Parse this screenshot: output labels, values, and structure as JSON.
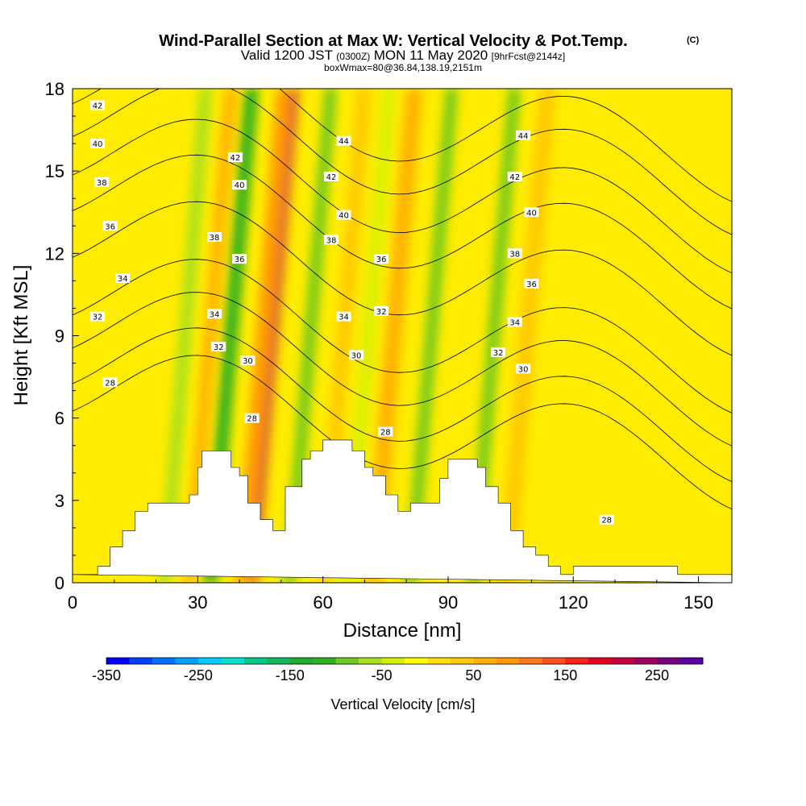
{
  "chart_data": {
    "type": "heatmap",
    "title": "Wind-Parallel Section at Max W: Vertical Velocity & Pot.Temp.",
    "title_mark": "(C)",
    "subtitle_main": "Valid 1200 JST",
    "subtitle_utc": "(0300Z)",
    "subtitle_date": "MON 11 May 2020",
    "subtitle_fcst": "[9hrFcst@2144z]",
    "box_info": "boxWmax=80@36.84,138.19,2151m",
    "xlabel": "Distance [nm]",
    "ylabel": "Height [Kft MSL]",
    "xlim": [
      0,
      158
    ],
    "ylim": [
      0,
      18
    ],
    "x_ticks": [
      "0",
      "30",
      "60",
      "90",
      "120",
      "150"
    ],
    "y_ticks": [
      "0",
      "3",
      "6",
      "9",
      "12",
      "15",
      "18"
    ],
    "colorbar": {
      "label": "Vertical Velocity [cm/s]",
      "min": -350,
      "max": 300,
      "step": 25,
      "tick_labels": [
        "-350",
        "-250",
        "-150",
        "-50",
        "50",
        "150",
        "250"
      ],
      "colors": [
        "#0000ff",
        "#0040ff",
        "#0070ff",
        "#00a0ff",
        "#00ccff",
        "#00e5cc",
        "#00cc88",
        "#10b860",
        "#20aa30",
        "#30b020",
        "#70c820",
        "#a8e020",
        "#d8f000",
        "#ffff00",
        "#ffe000",
        "#ffc800",
        "#ffb000",
        "#ff9800",
        "#ff7818",
        "#ff5020",
        "#ff2018",
        "#e80020",
        "#c80040",
        "#a00060",
        "#7a0080",
        "#5a00a0"
      ]
    },
    "velocity_bands": [
      {
        "x": 22,
        "w": 3,
        "v": -60
      },
      {
        "x": 33,
        "w": 3.5,
        "v": -110
      },
      {
        "x": 43,
        "w": 2.5,
        "v": 210
      },
      {
        "x": 41,
        "w": 4,
        "v": 90
      },
      {
        "x": 28,
        "w": 3,
        "v": 60
      },
      {
        "x": 52,
        "w": 3,
        "v": -90
      },
      {
        "x": 60,
        "w": 3.5,
        "v": 45
      },
      {
        "x": 66,
        "w": 3,
        "v": -40
      },
      {
        "x": 72,
        "w": 4,
        "v": 70
      },
      {
        "x": 81,
        "w": 3,
        "v": -100
      },
      {
        "x": 96,
        "w": 3,
        "v": -80
      },
      {
        "x": 104,
        "w": 4,
        "v": 30
      }
    ],
    "terrain": [
      [
        0,
        0.3
      ],
      [
        6,
        0.3
      ],
      [
        6,
        0.6
      ],
      [
        9,
        0.6
      ],
      [
        9,
        1.3
      ],
      [
        12,
        1.3
      ],
      [
        12,
        1.9
      ],
      [
        15,
        1.9
      ],
      [
        15,
        2.6
      ],
      [
        18,
        2.6
      ],
      [
        18,
        2.9
      ],
      [
        22,
        2.9
      ],
      [
        22,
        2.9
      ],
      [
        28,
        2.9
      ],
      [
        28,
        3.2
      ],
      [
        30,
        3.2
      ],
      [
        30,
        4.2
      ],
      [
        31,
        4.2
      ],
      [
        31,
        4.8
      ],
      [
        38,
        4.8
      ],
      [
        38,
        4.2
      ],
      [
        40,
        4.2
      ],
      [
        40,
        3.9
      ],
      [
        42,
        3.9
      ],
      [
        42,
        2.9
      ],
      [
        45,
        2.9
      ],
      [
        45,
        2.3
      ],
      [
        48,
        2.3
      ],
      [
        48,
        1.9
      ],
      [
        51,
        1.9
      ],
      [
        51,
        3.5
      ],
      [
        55,
        3.5
      ],
      [
        55,
        4.5
      ],
      [
        57,
        4.5
      ],
      [
        57,
        4.8
      ],
      [
        60,
        4.8
      ],
      [
        60,
        5.2
      ],
      [
        67,
        5.2
      ],
      [
        67,
        4.8
      ],
      [
        70,
        4.8
      ],
      [
        70,
        4.2
      ],
      [
        72,
        4.2
      ],
      [
        72,
        3.9
      ],
      [
        75,
        3.9
      ],
      [
        75,
        3.2
      ],
      [
        78,
        3.2
      ],
      [
        78,
        2.6
      ],
      [
        81,
        2.6
      ],
      [
        81,
        2.9
      ],
      [
        88,
        2.9
      ],
      [
        88,
        3.8
      ],
      [
        90,
        3.8
      ],
      [
        90,
        4.5
      ],
      [
        97,
        4.5
      ],
      [
        97,
        4.2
      ],
      [
        99,
        4.2
      ],
      [
        99,
        3.5
      ],
      [
        102,
        3.5
      ],
      [
        102,
        2.9
      ],
      [
        105,
        2.9
      ],
      [
        105,
        1.9
      ],
      [
        108,
        1.9
      ],
      [
        108,
        1.3
      ],
      [
        111,
        1.3
      ],
      [
        111,
        1.0
      ],
      [
        114,
        1.0
      ],
      [
        114,
        0.6
      ],
      [
        117,
        0.6
      ],
      [
        117,
        0.3
      ],
      [
        120,
        0.3
      ],
      [
        120,
        0.6
      ],
      [
        145,
        0.6
      ],
      [
        145,
        0.3
      ],
      [
        158,
        0.3
      ],
      [
        158,
        0
      ]
    ],
    "isentropes": [
      {
        "value": 28,
        "base": 7.3
      },
      {
        "value": 30,
        "base": 8.3
      },
      {
        "value": 32,
        "base": 9.6
      },
      {
        "value": 34,
        "base": 10.8
      },
      {
        "value": 36,
        "base": 12.9
      },
      {
        "value": 38,
        "base": 14.6
      },
      {
        "value": 40,
        "base": 15.9
      },
      {
        "value": 42,
        "base": 17.3
      },
      {
        "value": 44,
        "base": 18.5
      }
    ],
    "contour_labels": [
      {
        "text": "42",
        "x": 6,
        "y": 17.4
      },
      {
        "text": "40",
        "x": 6,
        "y": 16.0
      },
      {
        "text": "38",
        "x": 7,
        "y": 14.6
      },
      {
        "text": "36",
        "x": 9,
        "y": 13.0
      },
      {
        "text": "34",
        "x": 12,
        "y": 11.1
      },
      {
        "text": "32",
        "x": 6,
        "y": 9.7
      },
      {
        "text": "28",
        "x": 9,
        "y": 7.3
      },
      {
        "text": "42",
        "x": 39,
        "y": 15.5
      },
      {
        "text": "40",
        "x": 40,
        "y": 14.5
      },
      {
        "text": "38",
        "x": 34,
        "y": 12.6
      },
      {
        "text": "36",
        "x": 40,
        "y": 11.8
      },
      {
        "text": "34",
        "x": 34,
        "y": 9.8
      },
      {
        "text": "32",
        "x": 35,
        "y": 8.6
      },
      {
        "text": "30",
        "x": 42,
        "y": 8.1
      },
      {
        "text": "28",
        "x": 43,
        "y": 6.0
      },
      {
        "text": "44",
        "x": 65,
        "y": 16.1
      },
      {
        "text": "42",
        "x": 62,
        "y": 14.8
      },
      {
        "text": "40",
        "x": 65,
        "y": 13.4
      },
      {
        "text": "38",
        "x": 62,
        "y": 12.5
      },
      {
        "text": "36",
        "x": 74,
        "y": 11.8
      },
      {
        "text": "34",
        "x": 65,
        "y": 9.7
      },
      {
        "text": "32",
        "x": 74,
        "y": 9.9
      },
      {
        "text": "30",
        "x": 68,
        "y": 8.3
      },
      {
        "text": "28",
        "x": 75,
        "y": 5.5
      },
      {
        "text": "44",
        "x": 108,
        "y": 16.3
      },
      {
        "text": "42",
        "x": 106,
        "y": 14.8
      },
      {
        "text": "40",
        "x": 110,
        "y": 13.5
      },
      {
        "text": "38",
        "x": 106,
        "y": 12.0
      },
      {
        "text": "36",
        "x": 110,
        "y": 10.9
      },
      {
        "text": "34",
        "x": 106,
        "y": 9.5
      },
      {
        "text": "32",
        "x": 102,
        "y": 8.4
      },
      {
        "text": "30",
        "x": 108,
        "y": 7.8
      },
      {
        "text": "28",
        "x": 128,
        "y": 2.3
      }
    ]
  }
}
